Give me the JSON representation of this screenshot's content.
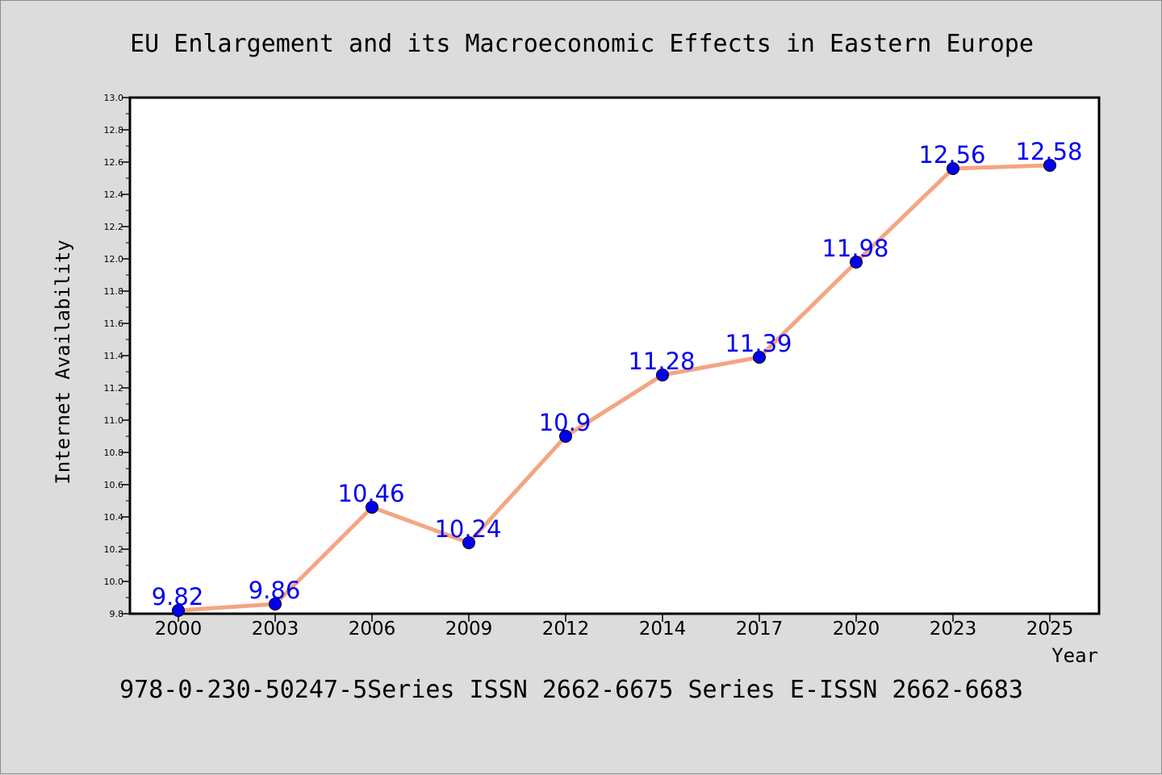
{
  "chart_data": {
    "type": "line",
    "title": "EU Enlargement and its Macroeconomic Effects in Eastern Europe",
    "xlabel": "Year",
    "ylabel": "Internet Availability",
    "categories": [
      "2000",
      "2003",
      "2006",
      "2009",
      "2012",
      "2014",
      "2017",
      "2020",
      "2023",
      "2025"
    ],
    "series": [
      {
        "values": [
          9.82,
          9.86,
          10.46,
          10.24,
          10.9,
          11.28,
          11.39,
          11.98,
          12.56,
          12.58
        ],
        "labels": [
          "9.82",
          "9.86",
          "10.46",
          "10.24",
          "10.9",
          "11.28",
          "11.39",
          "11.98",
          "12.56",
          "12.58"
        ],
        "line_color": "#f4a582",
        "marker_color": "#0000ee",
        "label_color": "#0000ee"
      }
    ],
    "ylim": [
      9.8,
      13.0
    ],
    "yticks": [
      "9.8",
      "10.0",
      "10.2",
      "10.4",
      "10.6",
      "10.8",
      "11.0",
      "11.2",
      "11.4",
      "11.6",
      "11.8",
      "12.0",
      "12.2",
      "12.4",
      "12.6",
      "12.8",
      "13.0"
    ],
    "grid": false,
    "legend": "none"
  },
  "footer": {
    "text": "978-0-230-50247-5Series ISSN 2662-6675 Series E-ISSN 2662-6683"
  },
  "colors": {
    "background": "#dcdcdc",
    "plot_area": "#ffffff",
    "axes": "#000000"
  }
}
